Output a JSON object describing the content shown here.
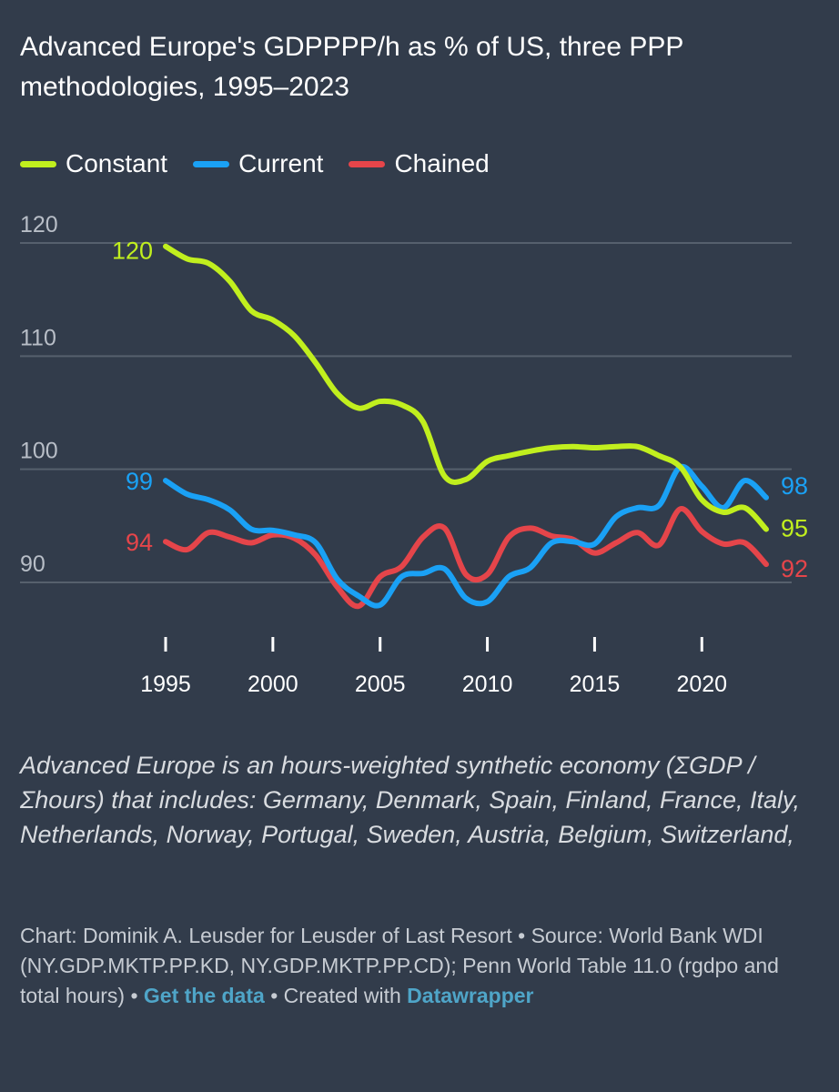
{
  "chart_data": {
    "type": "line",
    "title": "Advanced Europe's GDPPPP/h as % of US, three PPP methodologies, 1995–2023",
    "xlabel": "",
    "ylabel": "",
    "xlim": [
      1995,
      2023
    ],
    "ylim": [
      86,
      121
    ],
    "y_ticks": [
      120,
      110,
      100,
      90
    ],
    "x_ticks": [
      1995,
      2000,
      2005,
      2010,
      2015,
      2020
    ],
    "grid": "horizontal",
    "legend": "top-left",
    "x": [
      1995,
      1996,
      1997,
      1998,
      1999,
      2000,
      2001,
      2002,
      2003,
      2004,
      2005,
      2006,
      2007,
      2008,
      2009,
      2010,
      2011,
      2012,
      2013,
      2014,
      2015,
      2016,
      2017,
      2018,
      2019,
      2020,
      2021,
      2022,
      2023
    ],
    "series": [
      {
        "name": "Constant",
        "color": "#c1ef1e",
        "end_label": "95",
        "start_label": "120",
        "values": [
          119.7,
          118.6,
          118.2,
          116.6,
          114.0,
          113.2,
          111.8,
          109.4,
          106.7,
          105.4,
          106.0,
          105.7,
          104.2,
          99.4,
          99.1,
          100.7,
          101.2,
          101.6,
          101.9,
          102.0,
          101.9,
          102.0,
          102.0,
          101.2,
          100.2,
          97.3,
          96.2,
          96.6,
          94.7
        ]
      },
      {
        "name": "Current",
        "color": "#1aa1f5",
        "end_label": "98",
        "start_label": "99",
        "values": [
          99.0,
          97.8,
          97.3,
          96.4,
          94.7,
          94.6,
          94.2,
          93.5,
          90.3,
          88.8,
          88.0,
          90.5,
          90.8,
          91.2,
          88.6,
          88.3,
          90.5,
          91.3,
          93.5,
          93.6,
          93.4,
          95.8,
          96.6,
          96.8,
          100.2,
          98.5,
          96.6,
          99.0,
          97.5
        ]
      },
      {
        "name": "Chained",
        "color": "#e5454a",
        "end_label": "92",
        "start_label": "94",
        "values": [
          93.6,
          92.9,
          94.4,
          94.0,
          93.5,
          94.2,
          93.9,
          92.4,
          89.6,
          87.9,
          90.5,
          91.4,
          94.0,
          94.8,
          90.7,
          90.7,
          94.0,
          94.8,
          94.1,
          93.8,
          92.6,
          93.5,
          94.4,
          93.3,
          96.5,
          94.5,
          93.4,
          93.5,
          91.6
        ]
      }
    ]
  },
  "note": "Advanced Europe is an hours-weighted synthetic economy (ΣGDP / Σhours) that includes: Germany, Denmark, Spain, Finland, France, Italy, Netherlands, Norway, Portugal, Sweden, Austria, Belgium, Switzerland,",
  "footer": {
    "credit_text": "Chart: Dominik A. Leusder for Leusder of Last Resort • Source: World Bank WDI (NY.GDP.MKTP.PP.KD, NY.GDP.MKTP.PP.CD); Penn World Table 11.0 (rgdpo and total hours) • ",
    "get_data_label": "Get the data",
    "separator": " • ",
    "created_with_text": "Created with ",
    "datawrapper_label": "Datawrapper"
  },
  "colors": {
    "background": "#323c4b",
    "grid": "#56606d",
    "axis_text": "#ffffff",
    "tick_label_y": "#b8bec7",
    "link": "#4fa5c8"
  }
}
